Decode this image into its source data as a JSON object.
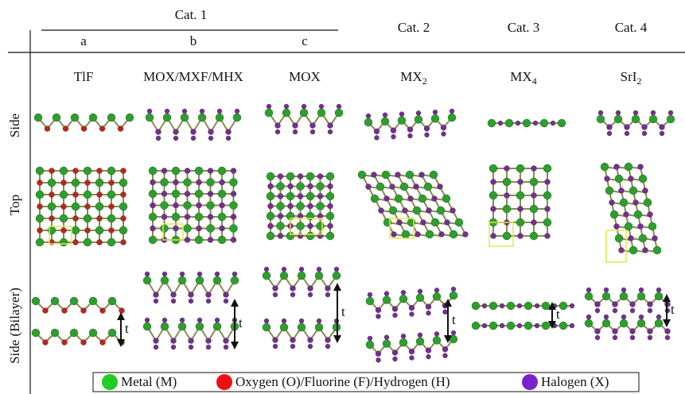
{
  "header": {
    "groups": [
      {
        "label": "Cat. 1",
        "subs": [
          "a",
          "b",
          "c"
        ]
      },
      {
        "label": "Cat. 2"
      },
      {
        "label": "Cat. 3"
      },
      {
        "label": "Cat. 4"
      }
    ]
  },
  "formulas": [
    {
      "text": "TlF"
    },
    {
      "text": "MOX/MXF/MHX"
    },
    {
      "text": "MOX"
    },
    {
      "text": "MX",
      "sub": "2"
    },
    {
      "text": "MX",
      "sub": "4"
    },
    {
      "text": "SrI",
      "sub": "2"
    }
  ],
  "rows": [
    "Side",
    "Top",
    "Side (Bilayer)"
  ],
  "thickness_label": "t",
  "legend": [
    "Metal (M)",
    "Oxygen (O)/Fluorine (F)/Hydrogen (H)",
    "Halogen (X)"
  ]
}
